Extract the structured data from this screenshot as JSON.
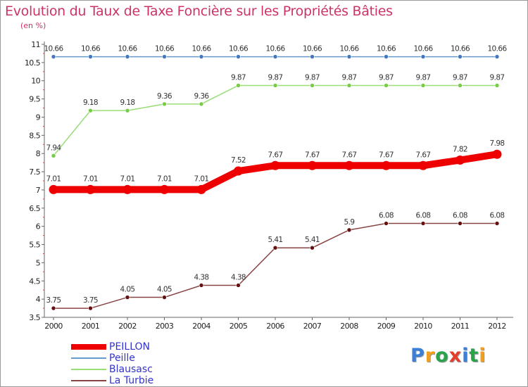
{
  "title": "Evolution du Taux de Taxe Foncière sur les Propriétés Bâties",
  "unit_label": "(en %)",
  "logo": {
    "letters": [
      "P",
      "r",
      "o",
      "x",
      "i",
      "t",
      "i"
    ],
    "colors": [
      "#3c7fd6",
      "#f0a020",
      "#2aa44a",
      "#e63c2a",
      "#3c7fd6",
      "#2aa44a",
      "#f0a020"
    ]
  },
  "chart_data": {
    "type": "line",
    "title": "Evolution du Taux de Taxe Foncière sur les Propriétés Bâties",
    "xlabel": "",
    "ylabel": "(en %)",
    "x": [
      "2000",
      "2001",
      "2002",
      "2003",
      "2004",
      "2005",
      "2006",
      "2007",
      "2008",
      "2009",
      "2010",
      "2011",
      "2012"
    ],
    "ylim": [
      3.5,
      11
    ],
    "y_ticks": [
      "3.5",
      "4",
      "4.5",
      "5",
      "5.5",
      "6",
      "6.5",
      "7",
      "7.5",
      "8",
      "8.5",
      "9",
      "9.5",
      "10",
      "10.5",
      "11"
    ],
    "grid": false,
    "legend_position": "bottom-left",
    "series": [
      {
        "name": "PEILLON",
        "color": "#ee0000",
        "marker_color": "#ee0000",
        "emphasis": "bold",
        "values": [
          7.01,
          7.01,
          7.01,
          7.01,
          7.01,
          7.52,
          7.67,
          7.67,
          7.67,
          7.67,
          7.67,
          7.82,
          7.98
        ],
        "labels": [
          "7.01",
          "7.01",
          "7.01",
          "7.01",
          "7.01",
          "7.52",
          "7.67",
          "7.67",
          "7.67",
          "7.67",
          "7.67",
          "7.82",
          "7.98"
        ]
      },
      {
        "name": "Peille",
        "color": "#6699cc",
        "marker_color": "#4477bb",
        "emphasis": "normal",
        "values": [
          10.66,
          10.66,
          10.66,
          10.66,
          10.66,
          10.66,
          10.66,
          10.66,
          10.66,
          10.66,
          10.66,
          10.66,
          10.66
        ],
        "labels": [
          "10.66",
          "10.66",
          "10.66",
          "10.66",
          "10.66",
          "10.66",
          "10.66",
          "10.66",
          "10.66",
          "10.66",
          "10.66",
          "10.66",
          "10.66"
        ]
      },
      {
        "name": "Blausasc",
        "color": "#99dd77",
        "marker_color": "#77cc44",
        "emphasis": "normal",
        "values": [
          7.94,
          9.18,
          9.18,
          9.36,
          9.36,
          9.87,
          9.87,
          9.87,
          9.87,
          9.87,
          9.87,
          9.87,
          9.87
        ],
        "labels": [
          "7.94",
          "9.18",
          "9.18",
          "9.36",
          "9.36",
          "9.87",
          "9.87",
          "9.87",
          "9.87",
          "9.87",
          "9.87",
          "9.87",
          "9.87"
        ]
      },
      {
        "name": "La Turbie",
        "color": "#884444",
        "marker_color": "#661111",
        "emphasis": "normal",
        "values": [
          3.75,
          3.75,
          4.05,
          4.05,
          4.38,
          4.38,
          5.41,
          5.41,
          5.9,
          6.08,
          6.08,
          6.08,
          6.08
        ],
        "labels": [
          "3.75",
          "3.75",
          "4.05",
          "4.05",
          "4.38",
          "4.38",
          "5.41",
          "5.41",
          "5.9",
          "6.08",
          "6.08",
          "6.08",
          "6.08"
        ]
      }
    ]
  }
}
